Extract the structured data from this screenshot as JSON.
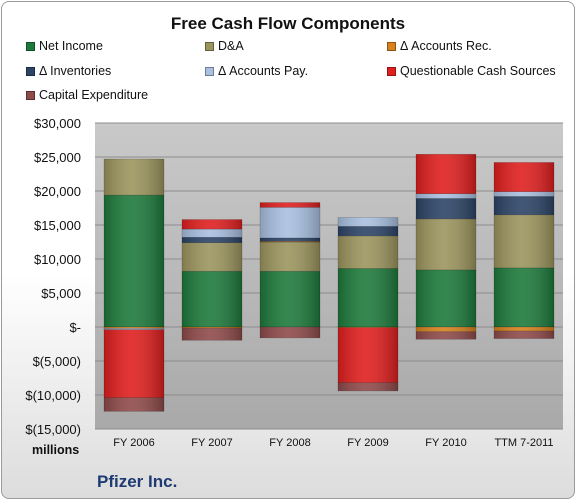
{
  "company": "Pfizer Inc.",
  "colors": {
    "net_income": "#1e7a3c",
    "da": "#9c955e",
    "accounts_rec": "#d8811e",
    "inventories": "#2c4466",
    "accounts_pay": "#a9c0e0",
    "questionable": "#e01f1f",
    "capex": "#8f4a4a"
  },
  "chart_data": {
    "type": "bar",
    "stacked": true,
    "title": "Free Cash Flow Components",
    "ylabel": "millions",
    "categories": [
      "FY 2006",
      "FY 2007",
      "FY 2008",
      "FY 2009",
      "FY 2010",
      "TTM 7-2011"
    ],
    "ylim": [
      -15000,
      30000
    ],
    "yticks": [
      {
        "value": 30000,
        "label": "$30,000"
      },
      {
        "value": 25000,
        "label": "$25,000"
      },
      {
        "value": 20000,
        "label": "$20,000"
      },
      {
        "value": 15000,
        "label": "$15,000"
      },
      {
        "value": 10000,
        "label": "$10,000"
      },
      {
        "value": 5000,
        "label": "$5,000"
      },
      {
        "value": 0,
        "label": "$-"
      },
      {
        "value": -5000,
        "label": "$(5,000)"
      },
      {
        "value": -10000,
        "label": "$(10,000)"
      },
      {
        "value": -15000,
        "label": "$(15,000)"
      }
    ],
    "grid": true,
    "legend_position": "top",
    "series": [
      {
        "name": "Net Income",
        "color_key": "net_income",
        "values": [
          19400,
          8200,
          8200,
          8600,
          8400,
          8700
        ]
      },
      {
        "name": "D&A",
        "color_key": "da",
        "values": [
          5300,
          4200,
          4300,
          4800,
          7500,
          7800
        ]
      },
      {
        "name": "Δ Accounts Rec.",
        "color_key": "accounts_rec",
        "values": [
          -200,
          -150,
          100,
          -100,
          -700,
          -600
        ]
      },
      {
        "name": "Δ Inventories",
        "color_key": "inventories",
        "values": [
          0,
          800,
          500,
          1400,
          3000,
          2700
        ]
      },
      {
        "name": "Δ Accounts Pay.",
        "color_key": "accounts_pay",
        "values": [
          -200,
          1200,
          4500,
          1300,
          700,
          700
        ]
      },
      {
        "name": "Questionable Cash Sources",
        "color_key": "questionable",
        "values": [
          -10000,
          1400,
          700,
          -8100,
          5800,
          4300
        ]
      },
      {
        "name": "Capital Expenditure",
        "color_key": "capex",
        "values": [
          -2000,
          -1800,
          -1600,
          -1200,
          -1100,
          -1100
        ]
      }
    ]
  }
}
